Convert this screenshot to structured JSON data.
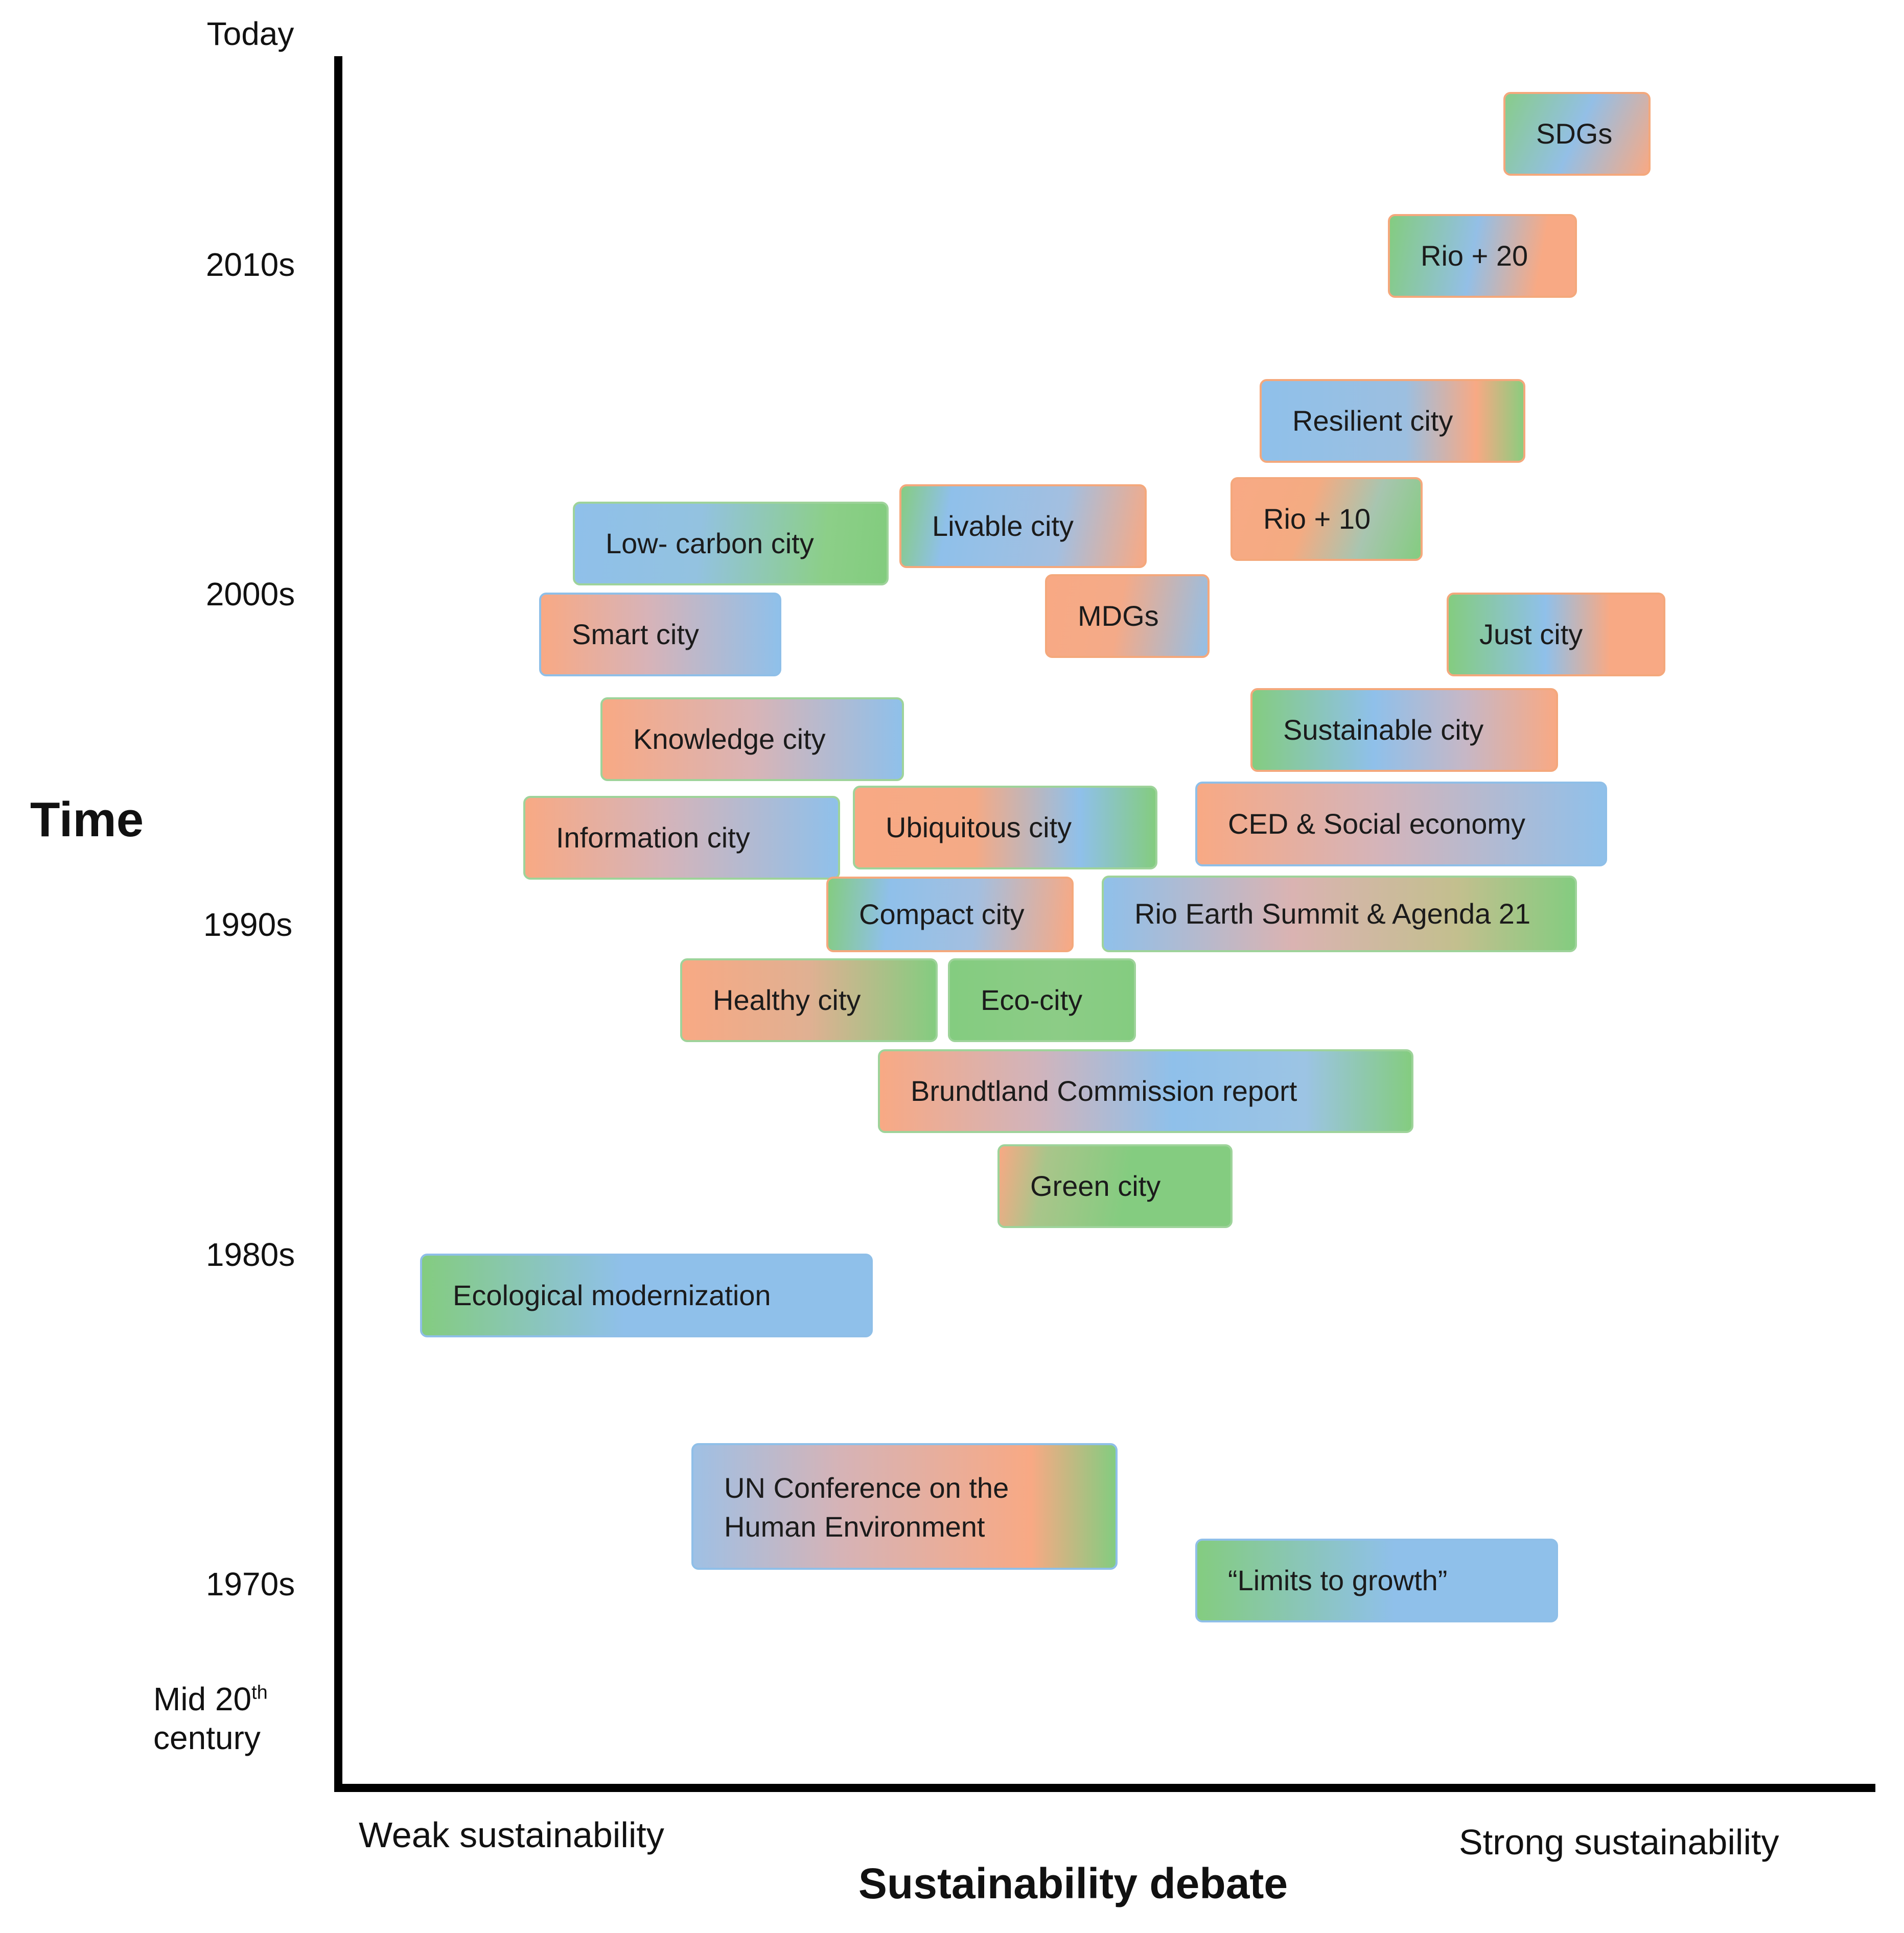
{
  "y_axis": {
    "title": "Time",
    "ticks": {
      "today": "Today",
      "t2010s": "2010s",
      "t2000s": "2000s",
      "t1990s": "1990s",
      "t1980s": "1980s",
      "t1970s": "1970s",
      "mid_prefix": "Mid 20",
      "mid_sup": "th",
      "mid_line2": "century"
    }
  },
  "x_axis": {
    "title": "Sustainability debate",
    "left_end": "Weak sustainability",
    "right_end": "Strong sustainability"
  },
  "concepts": {
    "sdgs": "SDGs",
    "rio20": "Rio + 20",
    "resilient": "Resilient city",
    "livable": "Livable city",
    "rio10": "Rio + 10",
    "low_carbon": "Low- carbon city",
    "mdgs": "MDGs",
    "smart": "Smart city",
    "just": "Just city",
    "knowledge": "Knowledge city",
    "sustainable": "Sustainable city",
    "information": "Information city",
    "ubiquitous": "Ubiquitous city",
    "ced": "CED & Social economy",
    "compact": "Compact city",
    "rio_earth": "Rio Earth Summit & Agenda 21",
    "healthy": "Healthy city",
    "eco": "Eco-city",
    "brundtland": "Brundtland Commission report",
    "green": "Green city",
    "eco_mod": "Ecological modernization",
    "un_conf_line1": "UN Conference on the",
    "un_conf_line2": "Human Environment",
    "limits": "“Limits to growth”"
  },
  "colors": {
    "orange": "#f8a984",
    "blue": "#8fbfe8",
    "green": "#82cc7e",
    "axis": "#000000"
  }
}
